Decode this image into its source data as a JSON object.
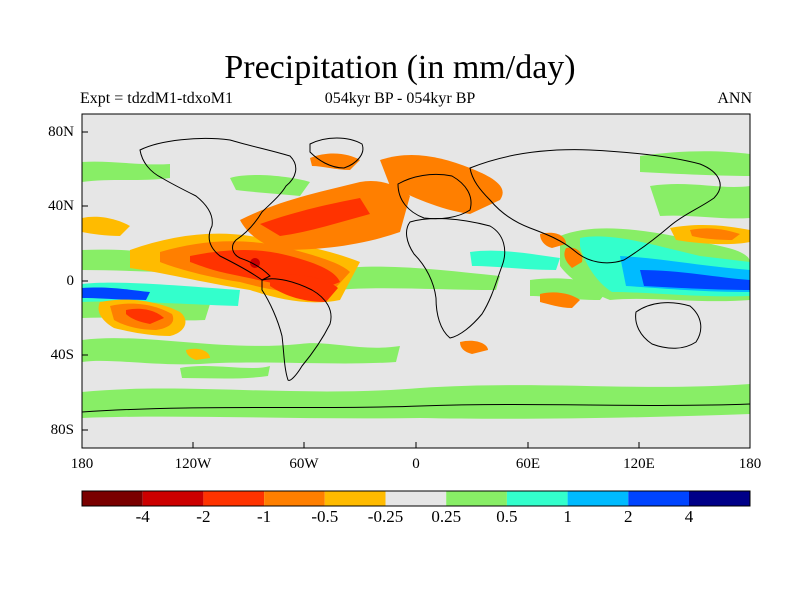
{
  "title": "Precipitation (in mm/day)",
  "left_string": "Expt = tdzdM1-tdxoM1",
  "center_string": "054kyr BP - 054kyr BP",
  "right_string": "ANN",
  "lat_labels": [
    "80N",
    "40N",
    "0",
    "40S",
    "80S"
  ],
  "lon_labels": [
    "180",
    "120W",
    "60W",
    "0",
    "60E",
    "120E",
    "180"
  ],
  "colorbar": {
    "labels": [
      "-4",
      "-2",
      "-1",
      "-0.5",
      "-0.25",
      "0.25",
      "0.5",
      "1",
      "2",
      "4"
    ],
    "colors": [
      "#7a0000",
      "#cc0000",
      "#ff3300",
      "#ff7f00",
      "#ffbb00",
      "#e6e6e6",
      "#88ee66",
      "#33ffcc",
      "#00bbff",
      "#0044ff",
      "#000088"
    ]
  },
  "colors": {
    "background": "#e6e6e6",
    "dry_strong": "#ff3300",
    "dry_mid": "#ff7f00",
    "dry_weak": "#ffbb00",
    "dry_extreme": "#cc0000",
    "wet_weak": "#88ee66",
    "wet_mid": "#33ffcc",
    "wet_strong": "#00bbff",
    "wet_extreme": "#0044ff"
  }
}
